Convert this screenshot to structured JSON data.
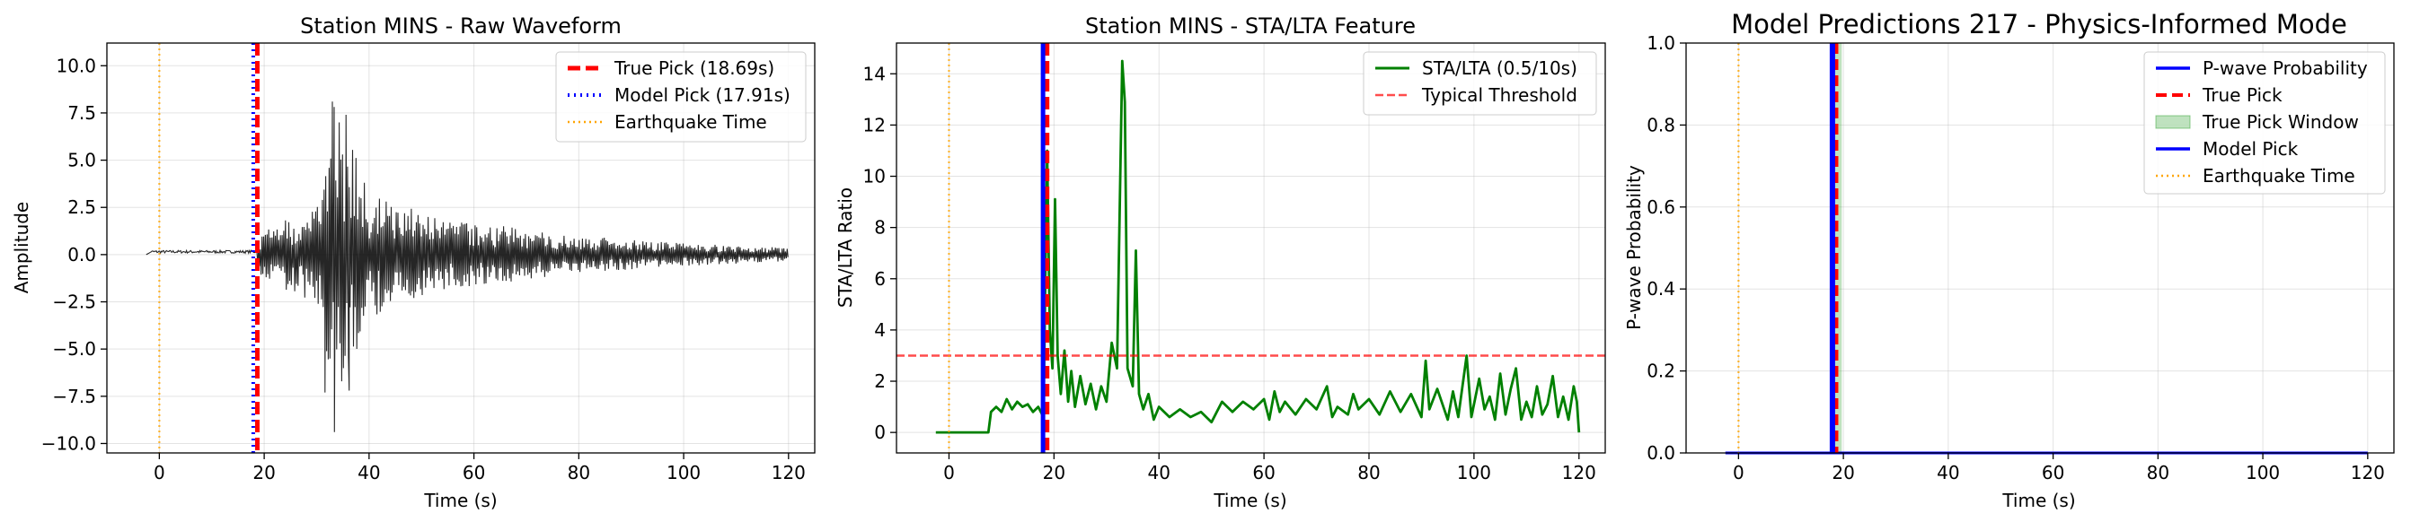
{
  "colors": {
    "true_pick": "#ff0000",
    "model_pick": "#0000ff",
    "quake": "#ffa500",
    "waveform": "#000000",
    "stalta": "#008000",
    "threshold": "#ff0000",
    "window": "#2ca02c",
    "grid": "#b0b0b0"
  },
  "chart_data": [
    {
      "type": "line",
      "title": "Station MINS - Raw Waveform",
      "xlabel": "Time (s)",
      "ylabel": "Amplitude",
      "xlim": [
        -10,
        125
      ],
      "ylim": [
        -10.5,
        11.2
      ],
      "xticks": [
        0,
        20,
        40,
        60,
        80,
        100,
        120
      ],
      "xtick_labels": [
        "0",
        "20",
        "40",
        "60",
        "80",
        "100",
        "120"
      ],
      "yticks": [
        -10,
        -7.5,
        -5,
        -2.5,
        0,
        2.5,
        5,
        7.5,
        10
      ],
      "ytick_labels": [
        "−10.0",
        "−7.5",
        "−5.0",
        "−2.5",
        "0.0",
        "2.5",
        "5.0",
        "7.5",
        "10.0"
      ],
      "grid": true,
      "legend_position": "top-right",
      "waveform": {
        "x_start": -2.5,
        "x_end": 120,
        "noise_amplitude": 0.15,
        "onset": 18.7,
        "envelope": [
          {
            "t": 18.7,
            "amp": 1.0
          },
          {
            "t": 25,
            "amp": 2.0
          },
          {
            "t": 31,
            "amp": 2.8
          },
          {
            "t": 33,
            "amp": 8.1
          },
          {
            "t": 36,
            "amp": 6.2
          },
          {
            "t": 40,
            "amp": 3.4
          },
          {
            "t": 50,
            "amp": 2.2
          },
          {
            "t": 60,
            "amp": 1.7
          },
          {
            "t": 80,
            "amp": 1.0
          },
          {
            "t": 100,
            "amp": 0.6
          },
          {
            "t": 120,
            "amp": 0.35
          }
        ],
        "spikes": [
          {
            "t": 33.0,
            "y": 8.1
          },
          {
            "t": 33.4,
            "y": -9.4
          },
          {
            "t": 34.3,
            "y": 7.0
          },
          {
            "t": 35.6,
            "y": 7.4
          },
          {
            "t": 36.2,
            "y": -7.2
          },
          {
            "t": 31.6,
            "y": -7.3
          },
          {
            "t": 32.4,
            "y": 4.2
          }
        ]
      },
      "vlines": [
        {
          "name": "True Pick (18.69s)",
          "x": 18.69,
          "style": "true_pick"
        },
        {
          "name": "Model Pick (17.91s)",
          "x": 17.91,
          "style": "model_pick"
        },
        {
          "name": "Earthquake Time",
          "x": 0,
          "style": "quake"
        }
      ],
      "legend": [
        "True Pick (18.69s)",
        "Model Pick (17.91s)",
        "Earthquake Time"
      ]
    },
    {
      "type": "line",
      "title": "Station MINS - STA/LTA Feature",
      "xlabel": "Time (s)",
      "ylabel": "STA/LTA Ratio",
      "xlim": [
        -10,
        125
      ],
      "ylim": [
        -0.8,
        15.2
      ],
      "xticks": [
        0,
        20,
        40,
        60,
        80,
        100,
        120
      ],
      "xtick_labels": [
        "0",
        "20",
        "40",
        "60",
        "80",
        "100",
        "120"
      ],
      "yticks": [
        0,
        2,
        4,
        6,
        8,
        10,
        12,
        14
      ],
      "ytick_labels": [
        "0",
        "2",
        "4",
        "6",
        "8",
        "10",
        "12",
        "14"
      ],
      "grid": true,
      "legend_position": "top-right",
      "series": {
        "name": "STA/LTA (0.5/10s)",
        "points": [
          [
            -2.5,
            0
          ],
          [
            7.5,
            0
          ],
          [
            8,
            0.8
          ],
          [
            9,
            1.0
          ],
          [
            10,
            0.8
          ],
          [
            11,
            1.3
          ],
          [
            12,
            0.9
          ],
          [
            13,
            1.2
          ],
          [
            14,
            1.0
          ],
          [
            15,
            1.1
          ],
          [
            16,
            0.8
          ],
          [
            17,
            1.0
          ],
          [
            18,
            0.6
          ],
          [
            18.7,
            11.0
          ],
          [
            19.2,
            4.0
          ],
          [
            19.7,
            2.5
          ],
          [
            20.2,
            9.1
          ],
          [
            20.7,
            3.0
          ],
          [
            21.3,
            1.5
          ],
          [
            22,
            3.2
          ],
          [
            22.7,
            1.2
          ],
          [
            23.3,
            2.4
          ],
          [
            24,
            1.0
          ],
          [
            25,
            2.2
          ],
          [
            26,
            1.1
          ],
          [
            27,
            1.9
          ],
          [
            28,
            0.9
          ],
          [
            29,
            1.8
          ],
          [
            30,
            1.2
          ],
          [
            31,
            3.5
          ],
          [
            32,
            2.5
          ],
          [
            33,
            14.5
          ],
          [
            33.5,
            12.9
          ],
          [
            34,
            2.5
          ],
          [
            35,
            1.8
          ],
          [
            35.6,
            7.1
          ],
          [
            36.2,
            1.5
          ],
          [
            37,
            0.9
          ],
          [
            38,
            1.5
          ],
          [
            39,
            0.5
          ],
          [
            40,
            1.0
          ],
          [
            42,
            0.6
          ],
          [
            44,
            0.9
          ],
          [
            46,
            0.6
          ],
          [
            48,
            0.8
          ],
          [
            50,
            0.4
          ],
          [
            52,
            1.2
          ],
          [
            54,
            0.8
          ],
          [
            56,
            1.2
          ],
          [
            58,
            0.9
          ],
          [
            60,
            1.3
          ],
          [
            61,
            0.5
          ],
          [
            62,
            1.6
          ],
          [
            63,
            0.8
          ],
          [
            64,
            1.2
          ],
          [
            66,
            0.7
          ],
          [
            68,
            1.3
          ],
          [
            70,
            0.9
          ],
          [
            72,
            1.8
          ],
          [
            73,
            0.6
          ],
          [
            74,
            1.0
          ],
          [
            76,
            0.7
          ],
          [
            77,
            1.5
          ],
          [
            78,
            0.9
          ],
          [
            80,
            1.3
          ],
          [
            82,
            0.7
          ],
          [
            84,
            1.6
          ],
          [
            86,
            0.8
          ],
          [
            88,
            1.5
          ],
          [
            90,
            0.6
          ],
          [
            90.8,
            2.8
          ],
          [
            91.5,
            0.9
          ],
          [
            93,
            1.7
          ],
          [
            95,
            0.5
          ],
          [
            96,
            1.6
          ],
          [
            97,
            0.6
          ],
          [
            98.6,
            3.0
          ],
          [
            99.5,
            0.6
          ],
          [
            101,
            2.1
          ],
          [
            102,
            0.9
          ],
          [
            103,
            1.4
          ],
          [
            104,
            0.5
          ],
          [
            105,
            2.3
          ],
          [
            106,
            0.7
          ],
          [
            107,
            1.7
          ],
          [
            108,
            2.5
          ],
          [
            109,
            0.5
          ],
          [
            110,
            1.2
          ],
          [
            111,
            0.6
          ],
          [
            112,
            1.8
          ],
          [
            113,
            0.7
          ],
          [
            114,
            1.1
          ],
          [
            115,
            2.2
          ],
          [
            116,
            0.6
          ],
          [
            117,
            1.4
          ],
          [
            118,
            0.5
          ],
          [
            119,
            1.8
          ],
          [
            119.6,
            1.2
          ],
          [
            120,
            0
          ]
        ]
      },
      "hline": {
        "name": "Typical Threshold",
        "y": 3.0
      },
      "vlines": [
        {
          "x": 18.69,
          "style": "true_pick"
        },
        {
          "x": 17.91,
          "style": "model_pick"
        },
        {
          "x": 0,
          "style": "quake"
        }
      ],
      "legend": [
        "STA/LTA (0.5/10s)",
        "Typical Threshold"
      ]
    },
    {
      "type": "line",
      "title": "Model Predictions 217 - Physics-Informed Mode",
      "xlabel": "Time (s)",
      "ylabel": "P-wave Probability",
      "xlim": [
        -10,
        125
      ],
      "ylim": [
        0,
        1.0
      ],
      "xticks": [
        0,
        20,
        40,
        60,
        80,
        100,
        120
      ],
      "xtick_labels": [
        "0",
        "20",
        "40",
        "60",
        "80",
        "100",
        "120"
      ],
      "yticks": [
        0,
        0.2,
        0.4,
        0.6,
        0.8,
        1.0
      ],
      "ytick_labels": [
        "0.0",
        "0.2",
        "0.4",
        "0.6",
        "0.8",
        "1.0"
      ],
      "grid": true,
      "legend_position": "top-right",
      "probability": {
        "x": [
          -2.5,
          120
        ],
        "y": [
          0,
          0
        ]
      },
      "true_pick_window": [
        17.69,
        19.69
      ],
      "vlines": [
        {
          "x": 18.69,
          "style": "true_pick"
        },
        {
          "x": 17.91,
          "style": "model_pick"
        },
        {
          "x": 0,
          "style": "quake"
        }
      ],
      "legend": [
        "P-wave Probability",
        "True Pick",
        "True Pick Window",
        "Model Pick",
        "Earthquake Time"
      ]
    }
  ]
}
